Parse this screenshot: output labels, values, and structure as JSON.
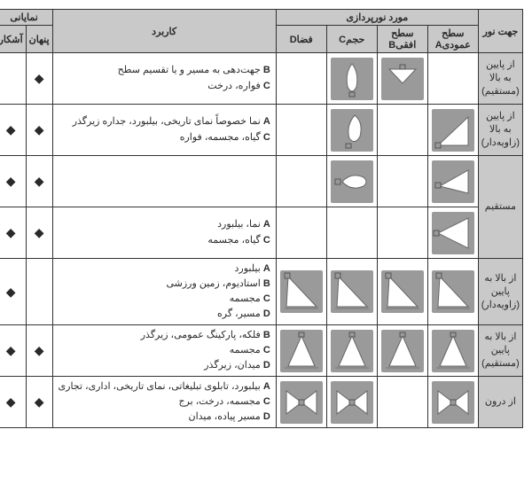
{
  "headers": {
    "light_dir": "جهت نور",
    "subject": "مورد نورپردازی",
    "colA": "سطح عمودیA",
    "colB": "سطح افقیB",
    "colC": "حجمC",
    "colD": "فضاD",
    "application": "کاربرد",
    "visibility": "نمایانی",
    "hidden": "پنهان",
    "visible": "آشکار"
  },
  "rows": [
    {
      "label": "از پایین\nبه بالا\n(مستقیم)",
      "icons": {
        "A": null,
        "B": "down-tri",
        "C": "bulb-up",
        "D": null
      },
      "apps": [
        {
          "p": "B",
          "t": "جهت‌دهی به مسیر و یا تقسیم سطح"
        },
        {
          "p": "C",
          "t": "فواره، درخت"
        }
      ],
      "hidden": true,
      "visible": false
    },
    {
      "label": "از پایین\nبه بالا\n(زاویه‌دار)",
      "icons": {
        "A": "tri-right",
        "B": null,
        "C": "bulb-up-ang",
        "D": null
      },
      "apps": [
        {
          "p": "A",
          "t": "نما خصوصاً نمای تاریخی، بیلبورد، جداره زیرگذر"
        },
        {
          "p": "C",
          "t": "گیاه، مجسمه، فواره"
        }
      ],
      "hidden": true,
      "visible": true
    },
    {
      "label": "مستقیم",
      "span": 2,
      "sub": [
        {
          "icons": {
            "A": "tri-right-sm",
            "B": null,
            "C": "bulb-side",
            "D": null
          },
          "apps": [],
          "hidden": true,
          "visible": true
        },
        {
          "icons": {
            "A": "tri-right-full",
            "B": null,
            "C": null,
            "D": null
          },
          "apps": [
            {
              "p": "A",
              "t": "نما، بیلبورد"
            },
            {
              "p": "C",
              "t": "گیاه، مجسمه"
            }
          ],
          "hidden": true,
          "visible": true
        }
      ]
    },
    {
      "label": "از بالا به\nپایین\n(زاویه‌دار)",
      "icons": {
        "A": "diag-down",
        "B": "diag-down",
        "C": "diag-down",
        "D": "diag-down"
      },
      "apps": [
        {
          "p": "A",
          "t": "بیلبورد"
        },
        {
          "p": "B",
          "t": "استادیوم، زمین ورزشی"
        },
        {
          "p": "C",
          "t": "مجسمه"
        },
        {
          "p": "D",
          "t": "مسیر، گره"
        }
      ],
      "hidden": false,
      "visible": true
    },
    {
      "label": "از بالا به\nپایین\n(مستقیم)",
      "icons": {
        "A": "cone-down",
        "B": "cone-down-b",
        "C": "cone-down-c",
        "D": "cone-down-d"
      },
      "apps": [
        {
          "p": "B",
          "t": "فلکه، پارکینگ عمومی، زیرگذر"
        },
        {
          "p": "C",
          "t": "مجسمه"
        },
        {
          "p": "D",
          "t": "میدان، زیرگذر"
        }
      ],
      "hidden": true,
      "visible": true
    },
    {
      "label": "از درون",
      "icons": {
        "A": "bowtie",
        "B": null,
        "C": "bowtie-c",
        "D": "bowtie-d"
      },
      "apps": [
        {
          "p": "A",
          "t": "بیلبورد، تابلوی تبلیغاتی، نمای تاریخی، اداری، تجاری"
        },
        {
          "p": "C",
          "t": "مجسمه، درخت، برج"
        },
        {
          "p": "D",
          "t": "مسیر پیاده، میدان"
        }
      ],
      "hidden": true,
      "visible": true
    }
  ],
  "style": {
    "dot": "◆",
    "iconbg": "#9a9a9a"
  }
}
